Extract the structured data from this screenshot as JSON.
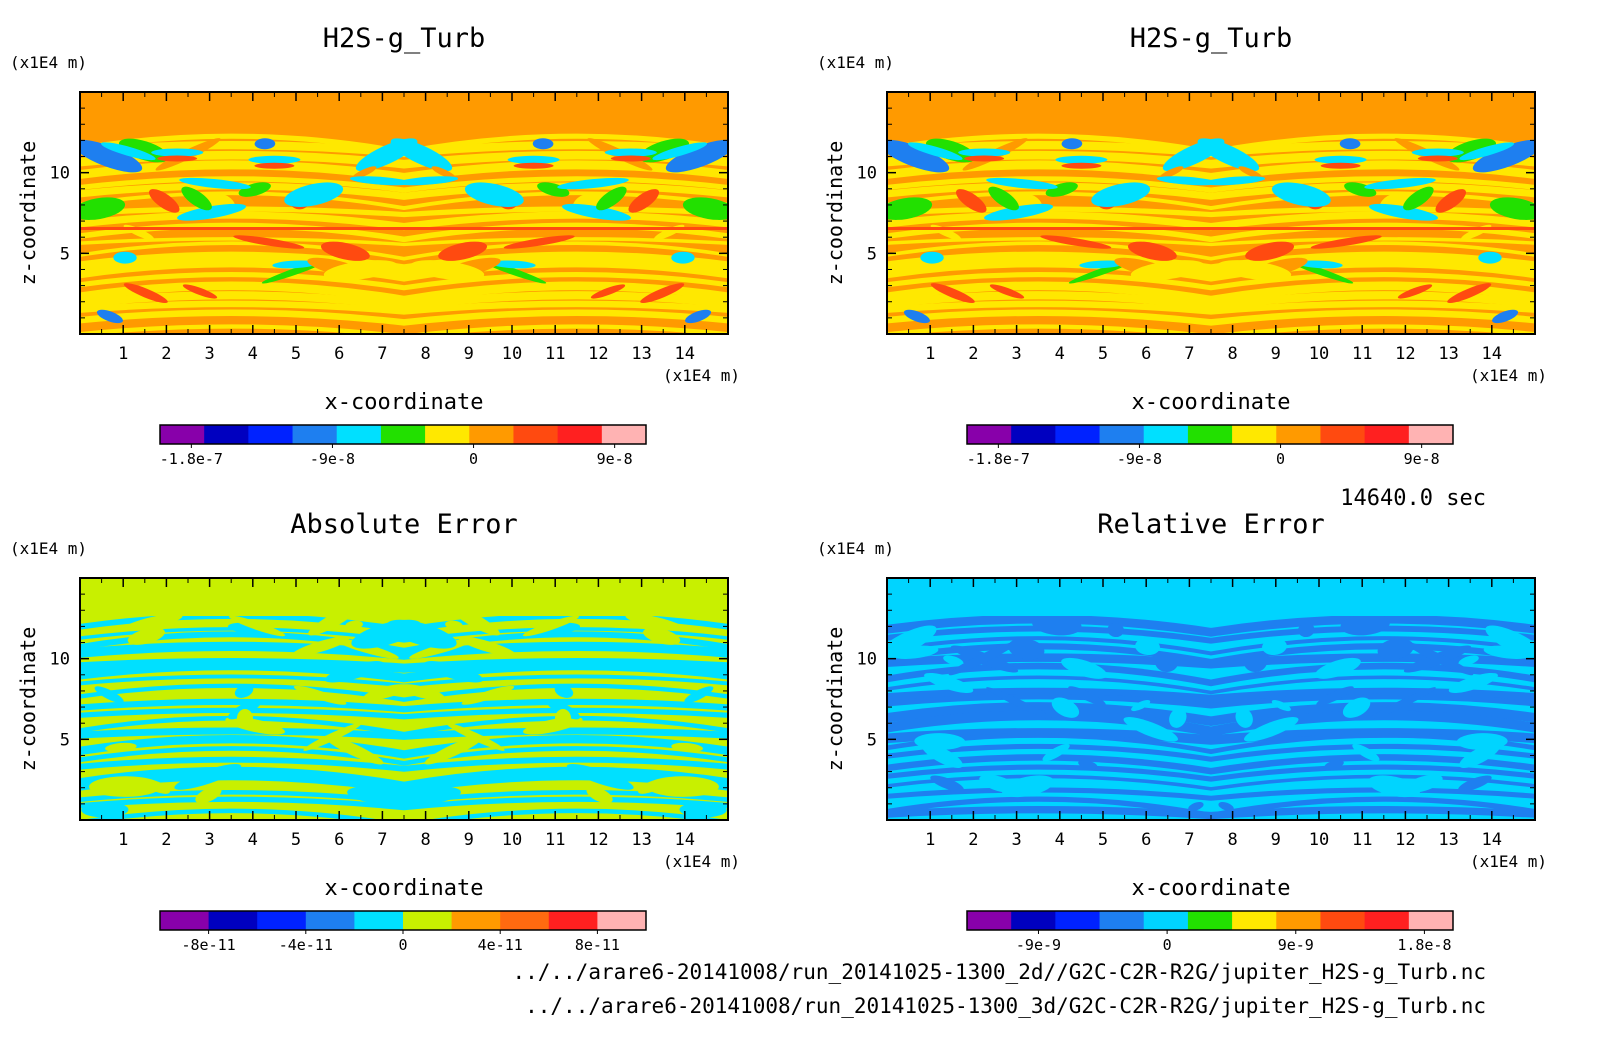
{
  "panels": [
    {
      "title": "H2S-g_Turb",
      "xlabel": "x-coordinate",
      "ylabel": "z-coordinate",
      "x_unit": "(x1E4 m)",
      "z_unit": "(x1E4 m)",
      "xticks": [
        "1",
        "2",
        "3",
        "4",
        "5",
        "6",
        "7",
        "8",
        "9",
        "10",
        "11",
        "12",
        "13",
        "14"
      ],
      "zticks": [
        "5",
        "10"
      ],
      "colorbar": {
        "colors": [
          "#8800aa",
          "#0000c0",
          "#0022ff",
          "#1e7ff0",
          "#00e0ff",
          "#22e000",
          "#ffe800",
          "#ff9a00",
          "#ff4a10",
          "#ff2020",
          "#ffb3b3"
        ],
        "labels": [
          "-1.8e-7",
          "-9e-8",
          "0",
          "9e-8"
        ]
      },
      "field": {
        "background": "#ff9a00",
        "bands": [
          "#ffe800",
          "#ff9a00",
          "#ff4a10",
          "#00e0ff",
          "#22e000",
          "#1e7ff0"
        ]
      }
    },
    {
      "title": "H2S-g_Turb",
      "xlabel": "x-coordinate",
      "ylabel": "z-coordinate",
      "x_unit": "(x1E4 m)",
      "z_unit": "(x1E4 m)",
      "xticks": [
        "1",
        "2",
        "3",
        "4",
        "5",
        "6",
        "7",
        "8",
        "9",
        "10",
        "11",
        "12",
        "13",
        "14"
      ],
      "zticks": [
        "5",
        "10"
      ],
      "colorbar": {
        "colors": [
          "#8800aa",
          "#0000c0",
          "#0022ff",
          "#1e7ff0",
          "#00e0ff",
          "#22e000",
          "#ffe800",
          "#ff9a00",
          "#ff4a10",
          "#ff2020",
          "#ffb3b3"
        ],
        "labels": [
          "-1.8e-7",
          "-9e-8",
          "0",
          "9e-8"
        ]
      },
      "field": {
        "background": "#ff9a00",
        "bands": [
          "#ffe800",
          "#ff9a00",
          "#ff4a10",
          "#00e0ff",
          "#22e000",
          "#1e7ff0"
        ]
      }
    },
    {
      "title": "Absolute Error",
      "xlabel": "x-coordinate",
      "ylabel": "z-coordinate",
      "x_unit": "(x1E4 m)",
      "z_unit": "(x1E4 m)",
      "xticks": [
        "1",
        "2",
        "3",
        "4",
        "5",
        "6",
        "7",
        "8",
        "9",
        "10",
        "11",
        "12",
        "13",
        "14"
      ],
      "zticks": [
        "5",
        "10"
      ],
      "colorbar": {
        "colors": [
          "#8800aa",
          "#0000c0",
          "#0022ff",
          "#1e7ff0",
          "#00e0ff",
          "#c8f000",
          "#ff9a00",
          "#ff6a10",
          "#ff2020",
          "#ffb3b3"
        ],
        "labels": [
          "-8e-11",
          "-4e-11",
          "0",
          "4e-11",
          "8e-11"
        ]
      },
      "field": {
        "background": "#c8f000",
        "bands": [
          "#00e0ff",
          "#c8f000"
        ]
      }
    },
    {
      "title": "Relative Error",
      "xlabel": "x-coordinate",
      "ylabel": "z-coordinate",
      "x_unit": "(x1E4 m)",
      "z_unit": "(x1E4 m)",
      "xticks": [
        "1",
        "2",
        "3",
        "4",
        "5",
        "6",
        "7",
        "8",
        "9",
        "10",
        "11",
        "12",
        "13",
        "14"
      ],
      "zticks": [
        "5",
        "10"
      ],
      "colorbar": {
        "colors": [
          "#8800aa",
          "#0000c0",
          "#0022ff",
          "#1e7ff0",
          "#00d4ff",
          "#22e000",
          "#ffe800",
          "#ff9a00",
          "#ff4a10",
          "#ff2020",
          "#ffb3b3"
        ],
        "labels": [
          "-9e-9",
          "0",
          "9e-9",
          "1.8e-8"
        ]
      },
      "field": {
        "background": "#00d4ff",
        "bands": [
          "#1e7ff0",
          "#00d4ff"
        ]
      }
    }
  ],
  "time_label": "14640.0 sec",
  "file_paths": [
    "../../arare6-20141008/run_20141025-1300_2d//G2C-C2R-R2G/jupiter_H2S-g_Turb.nc",
    "../../arare6-20141008/run_20141025-1300_3d/G2C-C2R-R2G/jupiter_H2S-g_Turb.nc"
  ],
  "chart_data": [
    {
      "type": "heatmap",
      "title": "H2S-g_Turb",
      "xlabel": "x-coordinate",
      "ylabel": "z-coordinate",
      "x_unit": "(x1E4 m)",
      "z_unit": "(x1E4 m)",
      "xlim": [
        0,
        15
      ],
      "zlim": [
        0,
        15
      ],
      "x_ticks": [
        1,
        2,
        3,
        4,
        5,
        6,
        7,
        8,
        9,
        10,
        11,
        12,
        13,
        14
      ],
      "z_ticks": [
        5,
        10
      ],
      "colorbar_labels": [
        "-1.8e-7",
        "-9e-8",
        "0",
        "9e-8"
      ],
      "colorbar_range": [
        -2e-07,
        1.1e-07
      ]
    },
    {
      "type": "heatmap",
      "title": "H2S-g_Turb",
      "xlabel": "x-coordinate",
      "ylabel": "z-coordinate",
      "x_unit": "(x1E4 m)",
      "z_unit": "(x1E4 m)",
      "xlim": [
        0,
        15
      ],
      "zlim": [
        0,
        15
      ],
      "x_ticks": [
        1,
        2,
        3,
        4,
        5,
        6,
        7,
        8,
        9,
        10,
        11,
        12,
        13,
        14
      ],
      "z_ticks": [
        5,
        10
      ],
      "colorbar_labels": [
        "-1.8e-7",
        "-9e-8",
        "0",
        "9e-8"
      ],
      "colorbar_range": [
        -2e-07,
        1.1e-07
      ]
    },
    {
      "type": "heatmap",
      "title": "Absolute Error",
      "xlabel": "x-coordinate",
      "ylabel": "z-coordinate",
      "x_unit": "(x1E4 m)",
      "z_unit": "(x1E4 m)",
      "xlim": [
        0,
        15
      ],
      "zlim": [
        0,
        15
      ],
      "x_ticks": [
        1,
        2,
        3,
        4,
        5,
        6,
        7,
        8,
        9,
        10,
        11,
        12,
        13,
        14
      ],
      "z_ticks": [
        5,
        10
      ],
      "colorbar_labels": [
        "-8e-11",
        "-4e-11",
        "0",
        "4e-11",
        "8e-11"
      ],
      "colorbar_range": [
        -1e-10,
        1e-10
      ]
    },
    {
      "type": "heatmap",
      "title": "Relative Error",
      "xlabel": "x-coordinate",
      "ylabel": "z-coordinate",
      "x_unit": "(x1E4 m)",
      "z_unit": "(x1E4 m)",
      "xlim": [
        0,
        15
      ],
      "zlim": [
        0,
        15
      ],
      "x_ticks": [
        1,
        2,
        3,
        4,
        5,
        6,
        7,
        8,
        9,
        10,
        11,
        12,
        13,
        14
      ],
      "z_ticks": [
        5,
        10
      ],
      "colorbar_labels": [
        "-9e-9",
        "0",
        "9e-9",
        "1.8e-8"
      ],
      "colorbar_range": [
        -1.4e-08,
        2e-08
      ]
    }
  ]
}
